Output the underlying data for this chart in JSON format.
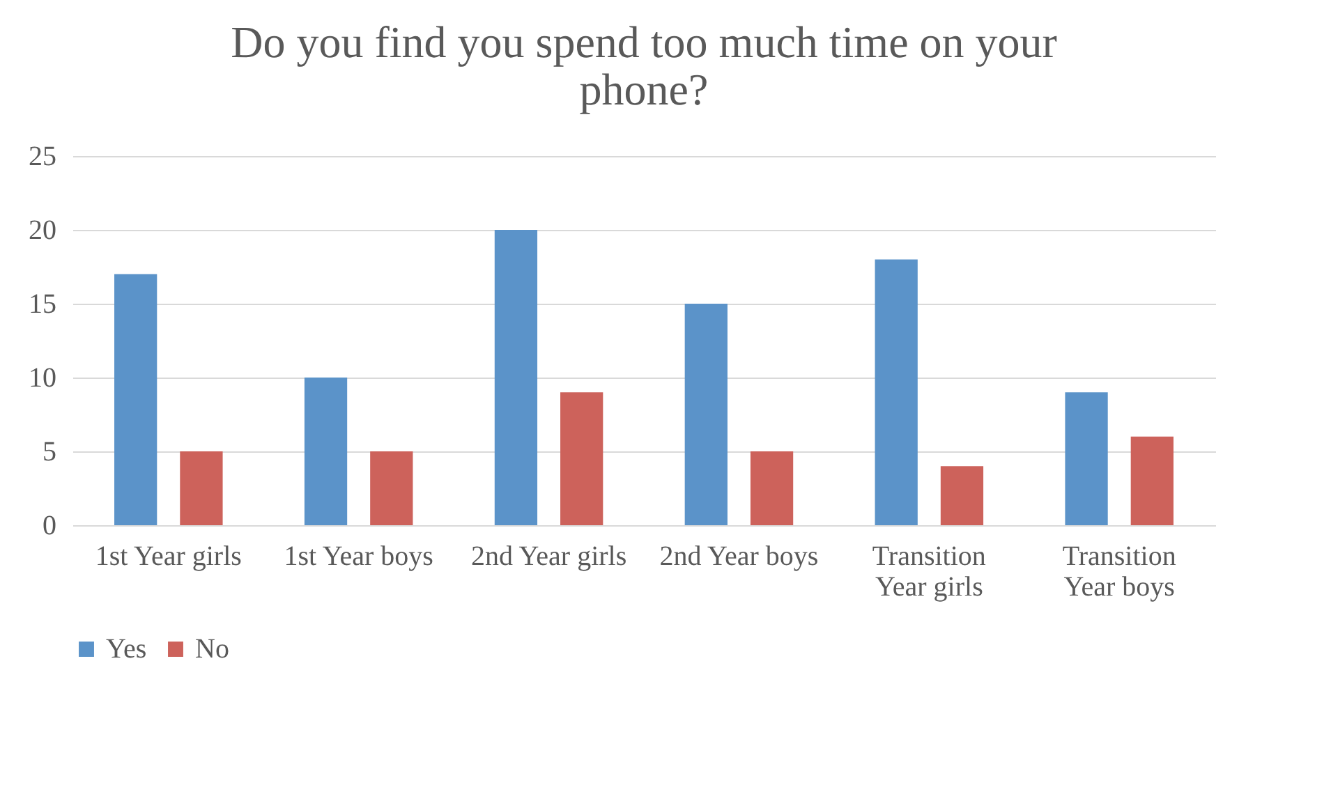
{
  "chart_data": {
    "type": "bar",
    "title": "Do you find you spend too much time on your phone?",
    "categories": [
      "1st Year girls",
      "1st Year boys",
      "2nd Year girls",
      "2nd Year boys",
      "Transition Year girls",
      "Transition Year boys"
    ],
    "series": [
      {
        "name": "Yes",
        "color": "#5b93c9",
        "values": [
          17,
          10,
          20,
          15,
          18,
          9
        ]
      },
      {
        "name": "No",
        "color": "#cd625b",
        "values": [
          5,
          5,
          9,
          5,
          4,
          6
        ]
      }
    ],
    "ylim": [
      0,
      25
    ],
    "yticks": [
      0,
      5,
      10,
      15,
      20,
      25
    ],
    "grid": "y",
    "legend": "bottom"
  }
}
